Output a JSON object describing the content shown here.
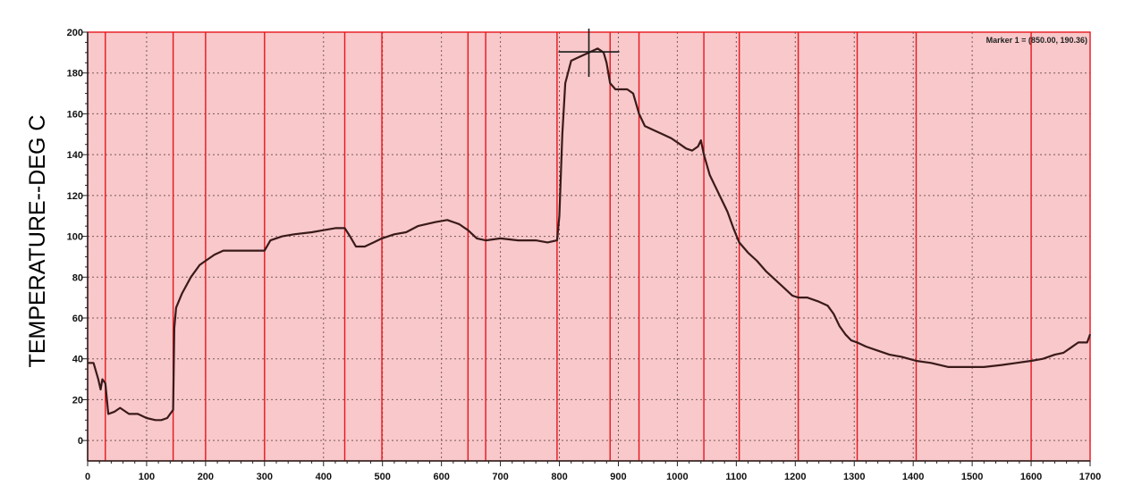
{
  "chart_data": {
    "type": "line",
    "title": "",
    "xlabel": "",
    "ylabel": "TEMPERATURE--DEG C",
    "xlim": [
      0,
      1700
    ],
    "ylim": [
      -10,
      200
    ],
    "x_ticks": [
      0,
      100,
      200,
      300,
      400,
      500,
      600,
      700,
      800,
      900,
      1000,
      1100,
      1200,
      1300,
      1400,
      1500,
      1600,
      1700
    ],
    "y_ticks": [
      0,
      20,
      40,
      60,
      80,
      100,
      120,
      140,
      160,
      180,
      200
    ],
    "grid": true,
    "background_color": "#f8c8ca",
    "line_color": "#3a1a1a",
    "band_line_color": "#e8161d",
    "vertical_lines": [
      30,
      145,
      200,
      300,
      436,
      499,
      645,
      675,
      796,
      886,
      935,
      1045,
      1105,
      1205,
      1305,
      1405,
      1600
    ],
    "marker": {
      "label": "Marker 1 = (850.00, 190.36)",
      "x": 850,
      "y": 190.36
    },
    "series": [
      {
        "points": [
          [
            0,
            38
          ],
          [
            10,
            38
          ],
          [
            18,
            30
          ],
          [
            22,
            25
          ],
          [
            25,
            30
          ],
          [
            30,
            28
          ],
          [
            35,
            13
          ],
          [
            45,
            14
          ],
          [
            55,
            16
          ],
          [
            70,
            13
          ],
          [
            85,
            13
          ],
          [
            100,
            11
          ],
          [
            115,
            10
          ],
          [
            125,
            10
          ],
          [
            135,
            11
          ],
          [
            140,
            13
          ],
          [
            145,
            15
          ],
          [
            147,
            55
          ],
          [
            150,
            65
          ],
          [
            160,
            72
          ],
          [
            175,
            80
          ],
          [
            190,
            86
          ],
          [
            200,
            88
          ],
          [
            215,
            91
          ],
          [
            230,
            93
          ],
          [
            260,
            93
          ],
          [
            285,
            93
          ],
          [
            300,
            93
          ],
          [
            310,
            98
          ],
          [
            330,
            100
          ],
          [
            350,
            101
          ],
          [
            380,
            102
          ],
          [
            400,
            103
          ],
          [
            420,
            104
          ],
          [
            436,
            104
          ],
          [
            445,
            100
          ],
          [
            455,
            95
          ],
          [
            470,
            95
          ],
          [
            485,
            97
          ],
          [
            499,
            99
          ],
          [
            520,
            101
          ],
          [
            540,
            102
          ],
          [
            560,
            105
          ],
          [
            590,
            107
          ],
          [
            610,
            108
          ],
          [
            630,
            106
          ],
          [
            645,
            103
          ],
          [
            660,
            99
          ],
          [
            675,
            98
          ],
          [
            700,
            99
          ],
          [
            730,
            98
          ],
          [
            760,
            98
          ],
          [
            780,
            97
          ],
          [
            796,
            98
          ],
          [
            800,
            110
          ],
          [
            805,
            150
          ],
          [
            810,
            175
          ],
          [
            820,
            186
          ],
          [
            835,
            188
          ],
          [
            850,
            190
          ],
          [
            865,
            192
          ],
          [
            875,
            190
          ],
          [
            880,
            185
          ],
          [
            886,
            175
          ],
          [
            895,
            172
          ],
          [
            905,
            172
          ],
          [
            915,
            172
          ],
          [
            925,
            170
          ],
          [
            935,
            160
          ],
          [
            945,
            154
          ],
          [
            960,
            152
          ],
          [
            975,
            150
          ],
          [
            990,
            148
          ],
          [
            1005,
            145
          ],
          [
            1015,
            143
          ],
          [
            1025,
            142
          ],
          [
            1035,
            144
          ],
          [
            1040,
            147
          ],
          [
            1045,
            140
          ],
          [
            1055,
            130
          ],
          [
            1065,
            124
          ],
          [
            1075,
            118
          ],
          [
            1085,
            112
          ],
          [
            1095,
            104
          ],
          [
            1105,
            97
          ],
          [
            1120,
            92
          ],
          [
            1135,
            88
          ],
          [
            1150,
            83
          ],
          [
            1165,
            79
          ],
          [
            1180,
            75
          ],
          [
            1195,
            71
          ],
          [
            1205,
            70
          ],
          [
            1220,
            70
          ],
          [
            1240,
            68
          ],
          [
            1255,
            66
          ],
          [
            1265,
            62
          ],
          [
            1275,
            56
          ],
          [
            1285,
            52
          ],
          [
            1295,
            49
          ],
          [
            1305,
            48
          ],
          [
            1320,
            46
          ],
          [
            1340,
            44
          ],
          [
            1360,
            42
          ],
          [
            1380,
            41
          ],
          [
            1405,
            39
          ],
          [
            1430,
            38
          ],
          [
            1460,
            36
          ],
          [
            1490,
            36
          ],
          [
            1520,
            36
          ],
          [
            1550,
            37
          ],
          [
            1575,
            38
          ],
          [
            1600,
            39
          ],
          [
            1620,
            40
          ],
          [
            1640,
            42
          ],
          [
            1655,
            43
          ],
          [
            1665,
            45
          ],
          [
            1680,
            48
          ],
          [
            1695,
            48
          ],
          [
            1700,
            52
          ]
        ]
      }
    ]
  }
}
